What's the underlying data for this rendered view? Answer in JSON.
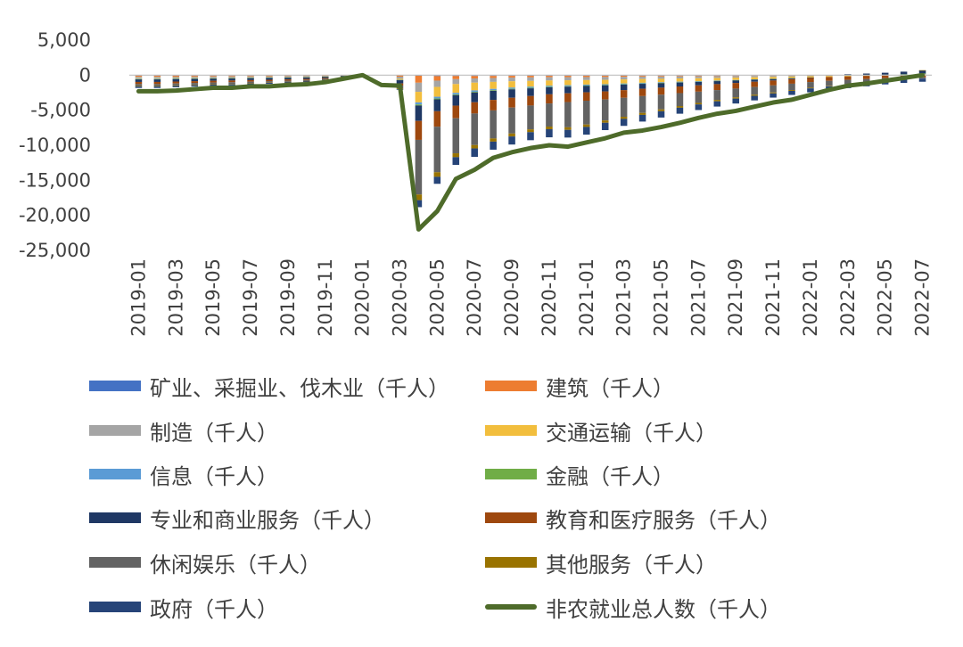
{
  "chart_data": {
    "type": "bar",
    "stacked": true,
    "title": "",
    "xlabel": "",
    "ylabel": "",
    "ylim": [
      -25000,
      5000
    ],
    "y_ticks": [
      "5,000",
      "0",
      "-5,000",
      "-10,000",
      "-15,000",
      "-20,000",
      "-25,000"
    ],
    "x_tick_labels": [
      "2019-01",
      "2019-03",
      "2019-05",
      "2019-07",
      "2019-09",
      "2019-11",
      "2020-01",
      "2020-03",
      "2020-05",
      "2020-07",
      "2020-09",
      "2020-11",
      "2021-01",
      "2021-03",
      "2021-05",
      "2021-07",
      "2021-09",
      "2021-11",
      "2022-01",
      "2022-03",
      "2022-05",
      "2022-07"
    ],
    "categories": [
      "2019-01",
      "2019-02",
      "2019-03",
      "2019-04",
      "2019-05",
      "2019-06",
      "2019-07",
      "2019-08",
      "2019-09",
      "2019-10",
      "2019-11",
      "2019-12",
      "2020-01",
      "2020-02",
      "2020-03",
      "2020-04",
      "2020-05",
      "2020-06",
      "2020-07",
      "2020-08",
      "2020-09",
      "2020-10",
      "2020-11",
      "2020-12",
      "2021-01",
      "2021-02",
      "2021-03",
      "2021-04",
      "2021-05",
      "2021-06",
      "2021-07",
      "2021-08",
      "2021-09",
      "2021-10",
      "2021-11",
      "2021-12",
      "2022-01",
      "2022-02",
      "2022-03",
      "2022-04",
      "2022-05",
      "2022-06",
      "2022-07"
    ],
    "grid": false,
    "legend_position": "bottom",
    "series": [
      {
        "name": "矿业、采掘业、伐木业（千人）",
        "color": "#4472C4",
        "type": "bar",
        "values": [
          -70,
          -70,
          -65,
          -60,
          -55,
          -50,
          -45,
          -40,
          -35,
          -30,
          -20,
          -10,
          0,
          0,
          -10,
          -80,
          -130,
          -120,
          -120,
          -110,
          -100,
          -90,
          -90,
          -90,
          -90,
          -90,
          -80,
          -70,
          -70,
          -60,
          -60,
          -50,
          -50,
          -40,
          -40,
          -30,
          -20,
          -20,
          -10,
          -10,
          0,
          0,
          0
        ]
      },
      {
        "name": "建筑（千人）",
        "color": "#ED7D31",
        "type": "bar",
        "values": [
          -160,
          -160,
          -150,
          -140,
          -130,
          -130,
          -120,
          -110,
          -100,
          -90,
          -70,
          -40,
          0,
          0,
          -200,
          -1000,
          -650,
          -450,
          -350,
          -300,
          -250,
          -230,
          -200,
          -190,
          -180,
          -170,
          -150,
          -130,
          -120,
          -110,
          -100,
          -90,
          -80,
          -70,
          -60,
          -40,
          -30,
          -20,
          -10,
          0,
          20,
          40,
          60
        ]
      },
      {
        "name": "制造（千人）",
        "color": "#A5A5A5",
        "type": "bar",
        "values": [
          -200,
          -200,
          -190,
          -180,
          -170,
          -160,
          -150,
          -140,
          -130,
          -120,
          -90,
          -50,
          0,
          0,
          -300,
          -1300,
          -900,
          -700,
          -600,
          -550,
          -520,
          -500,
          -470,
          -450,
          -430,
          -410,
          -380,
          -350,
          -330,
          -300,
          -280,
          -250,
          -220,
          -190,
          -160,
          -130,
          -100,
          -80,
          -50,
          -30,
          0,
          20,
          50
        ]
      },
      {
        "name": "交通运输（千人）",
        "color": "#F2BE3D",
        "type": "bar",
        "values": [
          -80,
          -80,
          -75,
          -70,
          -65,
          -60,
          -55,
          -50,
          -45,
          -40,
          -30,
          -15,
          0,
          0,
          -150,
          -1500,
          -1400,
          -1250,
          -1100,
          -1000,
          -900,
          -820,
          -750,
          -700,
          -650,
          -620,
          -580,
          -540,
          -500,
          -460,
          -420,
          -380,
          -340,
          -300,
          -260,
          -220,
          -180,
          -140,
          -100,
          -60,
          -20,
          20,
          60
        ]
      },
      {
        "name": "信息（千人）",
        "color": "#5B9BD5",
        "type": "bar",
        "values": [
          -60,
          -60,
          -55,
          -50,
          -45,
          -45,
          -40,
          -40,
          -35,
          -30,
          -20,
          -10,
          0,
          0,
          -50,
          -300,
          -250,
          -220,
          -200,
          -180,
          -170,
          -160,
          -150,
          -140,
          -130,
          -120,
          -110,
          -100,
          -90,
          -80,
          -70,
          -60,
          -50,
          -40,
          -30,
          -20,
          -10,
          0,
          10,
          20,
          30,
          40,
          50
        ]
      },
      {
        "name": "金融（千人）",
        "color": "#70AD47",
        "type": "bar",
        "values": [
          -40,
          -40,
          -38,
          -36,
          -34,
          -32,
          -30,
          -28,
          -26,
          -22,
          -16,
          -8,
          0,
          0,
          -20,
          -150,
          -120,
          -110,
          -100,
          -90,
          -85,
          -80,
          -75,
          -70,
          -65,
          -60,
          -55,
          -50,
          -45,
          -40,
          -35,
          -30,
          -25,
          -20,
          -15,
          -10,
          -5,
          0,
          5,
          10,
          15,
          20,
          25
        ]
      },
      {
        "name": "专业和商业服务（千人）",
        "color": "#1F3864",
        "type": "bar",
        "values": [
          -360,
          -360,
          -340,
          -320,
          -300,
          -290,
          -270,
          -250,
          -230,
          -200,
          -150,
          -80,
          0,
          0,
          -450,
          -2200,
          -1700,
          -1500,
          -1400,
          -1300,
          -1200,
          -1100,
          -1000,
          -950,
          -900,
          -850,
          -780,
          -700,
          -630,
          -560,
          -490,
          -420,
          -350,
          -280,
          -200,
          -120,
          -40,
          40,
          120,
          200,
          280,
          360,
          440
        ]
      },
      {
        "name": "教育和医疗服务（千人）",
        "color": "#9E480E",
        "type": "bar",
        "values": [
          -300,
          -300,
          -280,
          -260,
          -250,
          -240,
          -220,
          -200,
          -180,
          -160,
          -120,
          -60,
          0,
          0,
          -300,
          -2700,
          -2200,
          -1800,
          -1600,
          -1500,
          -1400,
          -1350,
          -1300,
          -1250,
          -1200,
          -1150,
          -1100,
          -1050,
          -1000,
          -950,
          -900,
          -850,
          -800,
          -750,
          -700,
          -650,
          -600,
          -550,
          -500,
          -450,
          -400,
          -350,
          -300
        ]
      },
      {
        "name": "休闲娱乐（千人）",
        "color": "#636363",
        "type": "bar",
        "values": [
          -280,
          -280,
          -270,
          -260,
          -250,
          -240,
          -220,
          -200,
          -180,
          -150,
          -110,
          -50,
          0,
          0,
          -400,
          -7800,
          -6500,
          -5000,
          -4500,
          -4000,
          -3700,
          -3400,
          -3300,
          -3600,
          -3400,
          -3000,
          -2700,
          -2400,
          -2100,
          -1850,
          -1600,
          -1400,
          -1250,
          -1100,
          -1000,
          -900,
          -800,
          -700,
          -600,
          -500,
          -400,
          -300,
          -200
        ]
      },
      {
        "name": "其他服务（千人）",
        "color": "#997300",
        "type": "bar",
        "values": [
          -80,
          -80,
          -75,
          -70,
          -65,
          -60,
          -55,
          -50,
          -45,
          -40,
          -30,
          -15,
          0,
          0,
          -100,
          -800,
          -650,
          -550,
          -480,
          -450,
          -420,
          -400,
          -380,
          -360,
          -340,
          -320,
          -300,
          -280,
          -260,
          -240,
          -220,
          -200,
          -180,
          -160,
          -140,
          -120,
          -100,
          -80,
          -60,
          -40,
          -20,
          0,
          20
        ]
      },
      {
        "name": "政府（千人）",
        "color": "#264478",
        "type": "bar",
        "values": [
          -200,
          -200,
          -190,
          -180,
          -170,
          -160,
          -150,
          -140,
          -130,
          -110,
          -80,
          -40,
          0,
          0,
          -100,
          -1000,
          -1000,
          -1100,
          -1200,
          -1150,
          -1150,
          -1150,
          -1150,
          -1100,
          -1100,
          -1050,
          -1000,
          -950,
          -900,
          -850,
          -800,
          -750,
          -700,
          -650,
          -600,
          -580,
          -560,
          -540,
          -520,
          -500,
          -480,
          -460,
          -440
        ]
      },
      {
        "name": "非农就业总人数（千人）",
        "color": "#4E6B2A",
        "type": "line",
        "values": [
          -2300,
          -2300,
          -2200,
          -2000,
          -1800,
          -1800,
          -1600,
          -1600,
          -1400,
          -1300,
          -1000,
          -500,
          0,
          -1400,
          -1500,
          -22000,
          -19400,
          -14800,
          -13500,
          -11800,
          -11000,
          -10400,
          -10000,
          -10200,
          -9600,
          -9000,
          -8200,
          -7900,
          -7400,
          -6800,
          -6100,
          -5500,
          -5100,
          -4500,
          -3900,
          -3500,
          -2800,
          -2100,
          -1500,
          -1200,
          -800,
          -400,
          0
        ]
      }
    ]
  }
}
